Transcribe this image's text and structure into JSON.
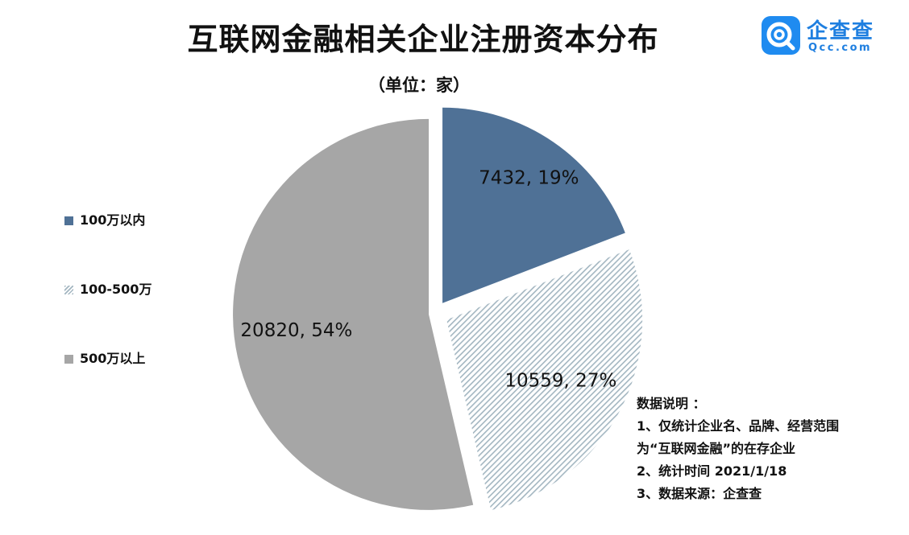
{
  "header": {
    "title": "互联网金融相关企业注册资本分布",
    "subtitle": "（单位：家）"
  },
  "logo": {
    "name": "企查查",
    "url": "Qcc.com"
  },
  "colors": {
    "seg1": "#4f7196",
    "seg2_stripe": "#a3b6c1",
    "seg3": "#a6a6a6",
    "brand": "#1f8bf0"
  },
  "chart_data": {
    "type": "pie",
    "title": "互联网金融相关企业注册资本分布",
    "unit": "家",
    "legend_position": "left",
    "slices": [
      {
        "label": "100万以内",
        "value": 7432,
        "percent": 19,
        "display": "7432, 19%",
        "fill": "solid-blue"
      },
      {
        "label": "100-500万",
        "value": 10559,
        "percent": 27,
        "display": "10559, 27%",
        "fill": "hatched"
      },
      {
        "label": "500万以上",
        "value": 20820,
        "percent": 54,
        "display": "20820, 54%",
        "fill": "solid-gray"
      }
    ]
  },
  "notes": [
    "数据说明  ：",
    "1、仅统计企业名、品牌、经营范围",
    "为“互联网金融”的在存企业",
    "2、统计时间  2021/1/18",
    "3、数据来源：企查查"
  ]
}
